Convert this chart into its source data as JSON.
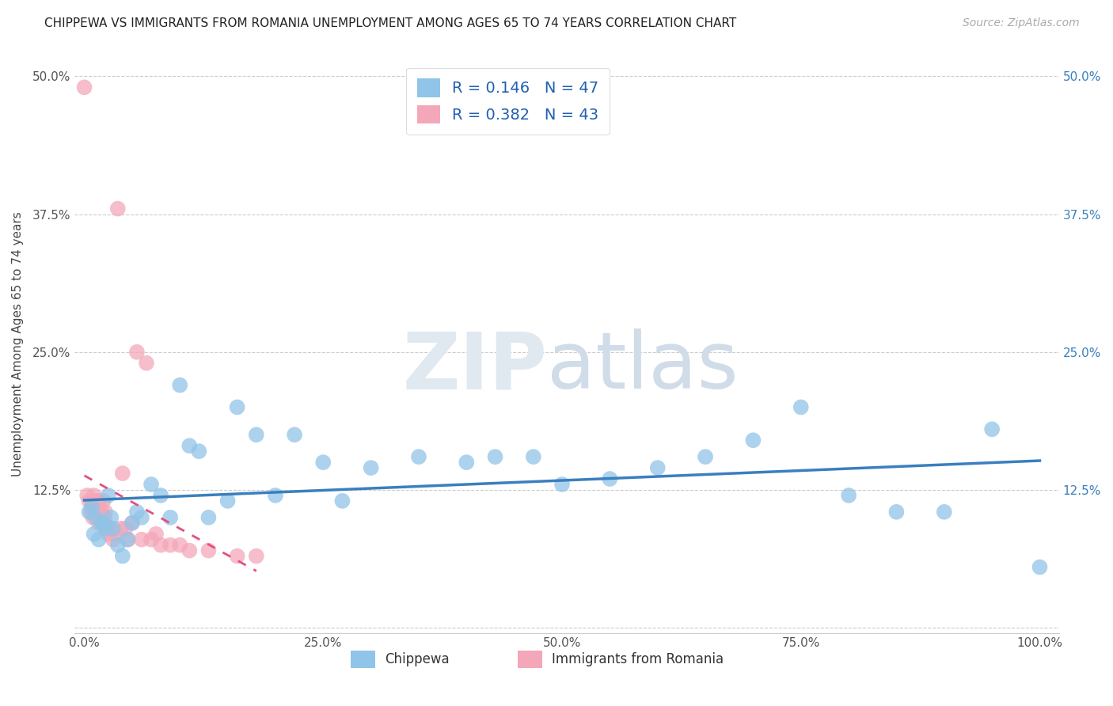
{
  "title": "CHIPPEWA VS IMMIGRANTS FROM ROMANIA UNEMPLOYMENT AMONG AGES 65 TO 74 YEARS CORRELATION CHART",
  "source": "Source: ZipAtlas.com",
  "ylabel": "Unemployment Among Ages 65 to 74 years",
  "xlim": [
    0,
    1.0
  ],
  "ylim": [
    0,
    0.5
  ],
  "xticks": [
    0.0,
    0.25,
    0.5,
    0.75,
    1.0
  ],
  "xticklabels": [
    "0.0%",
    "25.0%",
    "50.0%",
    "75.0%",
    "100.0%"
  ],
  "yticks": [
    0.0,
    0.125,
    0.25,
    0.375,
    0.5
  ],
  "yticklabels": [
    "",
    "12.5%",
    "25.0%",
    "37.5%",
    "50.0%"
  ],
  "chippewa_R": 0.146,
  "chippewa_N": 47,
  "romania_R": 0.382,
  "romania_N": 43,
  "chippewa_color": "#90c4e8",
  "romania_color": "#f4a7b9",
  "chippewa_line_color": "#3a7fbf",
  "romania_line_color": "#e05080",
  "chippewa_x": [
    0.005,
    0.008,
    0.01,
    0.012,
    0.015,
    0.018,
    0.02,
    0.022,
    0.025,
    0.028,
    0.03,
    0.035,
    0.04,
    0.045,
    0.05,
    0.055,
    0.06,
    0.07,
    0.08,
    0.09,
    0.1,
    0.11,
    0.12,
    0.13,
    0.15,
    0.16,
    0.18,
    0.2,
    0.22,
    0.25,
    0.27,
    0.3,
    0.35,
    0.4,
    0.43,
    0.47,
    0.5,
    0.55,
    0.6,
    0.65,
    0.7,
    0.75,
    0.8,
    0.85,
    0.9,
    0.95,
    1.0
  ],
  "chippewa_y": [
    0.105,
    0.11,
    0.085,
    0.1,
    0.08,
    0.095,
    0.095,
    0.09,
    0.12,
    0.1,
    0.09,
    0.075,
    0.065,
    0.08,
    0.095,
    0.105,
    0.1,
    0.13,
    0.12,
    0.1,
    0.22,
    0.165,
    0.16,
    0.1,
    0.115,
    0.2,
    0.175,
    0.12,
    0.175,
    0.15,
    0.115,
    0.145,
    0.155,
    0.15,
    0.155,
    0.155,
    0.13,
    0.135,
    0.145,
    0.155,
    0.17,
    0.2,
    0.12,
    0.105,
    0.105,
    0.18,
    0.055
  ],
  "romania_x": [
    0.0,
    0.003,
    0.005,
    0.007,
    0.008,
    0.009,
    0.01,
    0.011,
    0.012,
    0.013,
    0.014,
    0.015,
    0.016,
    0.017,
    0.018,
    0.019,
    0.02,
    0.021,
    0.022,
    0.023,
    0.024,
    0.025,
    0.027,
    0.03,
    0.032,
    0.035,
    0.038,
    0.04,
    0.043,
    0.046,
    0.05,
    0.055,
    0.06,
    0.065,
    0.07,
    0.075,
    0.08,
    0.09,
    0.1,
    0.11,
    0.13,
    0.16,
    0.18
  ],
  "romania_y": [
    0.49,
    0.12,
    0.115,
    0.105,
    0.11,
    0.1,
    0.12,
    0.11,
    0.115,
    0.105,
    0.115,
    0.095,
    0.11,
    0.1,
    0.105,
    0.095,
    0.115,
    0.1,
    0.105,
    0.09,
    0.09,
    0.085,
    0.09,
    0.08,
    0.085,
    0.38,
    0.09,
    0.14,
    0.09,
    0.08,
    0.095,
    0.25,
    0.08,
    0.24,
    0.08,
    0.085,
    0.075,
    0.075,
    0.075,
    0.07,
    0.07,
    0.065,
    0.065
  ]
}
